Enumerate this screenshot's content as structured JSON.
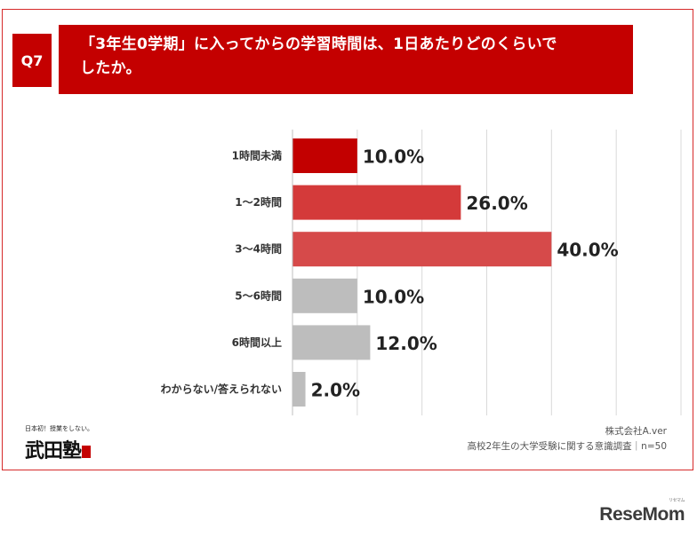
{
  "question": {
    "tag": "Q7",
    "line1": "「3年生0学期」に入ってからの学習時間は、1日あたりどのくらいで",
    "line2": "したか。"
  },
  "chart_data": {
    "type": "bar",
    "orientation": "horizontal",
    "categories": [
      "1時間未満",
      "1〜2時間",
      "3〜4時間",
      "5〜6時間",
      "6時間以上",
      "わからない/答えられない"
    ],
    "values": [
      10.0,
      26.0,
      40.0,
      10.0,
      12.0,
      2.0
    ],
    "data_labels": [
      "10.0%",
      "26.0%",
      "40.0%",
      "10.0%",
      "12.0%",
      "2.0%"
    ],
    "bar_colors": [
      "#c20000",
      "#d43a3a",
      "#d64a4a",
      "#bdbdbd",
      "#bdbdbd",
      "#bdbdbd"
    ],
    "xlim": [
      0,
      60
    ],
    "grid": true
  },
  "source": {
    "company": "株式会社A.ver",
    "survey": "高校2年生の大学受験に関する意識調査｜n=50"
  },
  "logos": {
    "left_tagline": "日本初！授業をしない。",
    "left_brand": "武田塾",
    "right_brand": "ReseMom",
    "right_small": "リセマム"
  }
}
